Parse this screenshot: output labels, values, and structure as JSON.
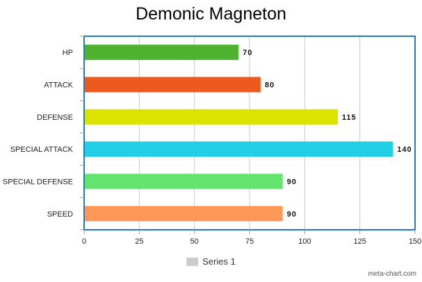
{
  "chart_data": {
    "type": "bar",
    "orientation": "horizontal",
    "title": "Demonic Magneton",
    "categories": [
      "HP",
      "ATTACK",
      "DEFENSE",
      "SPECIAL ATTACK",
      "SPECIAL DEFENSE",
      "SPEED"
    ],
    "series": [
      {
        "name": "Series 1",
        "values": [
          70,
          80,
          115,
          140,
          90,
          90
        ]
      }
    ],
    "bar_colors": [
      "#4fb331",
      "#ed5a1e",
      "#dde300",
      "#22cde6",
      "#64e36e",
      "#ff9758"
    ],
    "xlim": [
      0,
      150
    ],
    "xticks": [
      0,
      25,
      50,
      75,
      100,
      125,
      150
    ],
    "grid": true,
    "legend": "bottom",
    "frame_color": "#1f7ac2",
    "credit": "meta-chart.com"
  }
}
